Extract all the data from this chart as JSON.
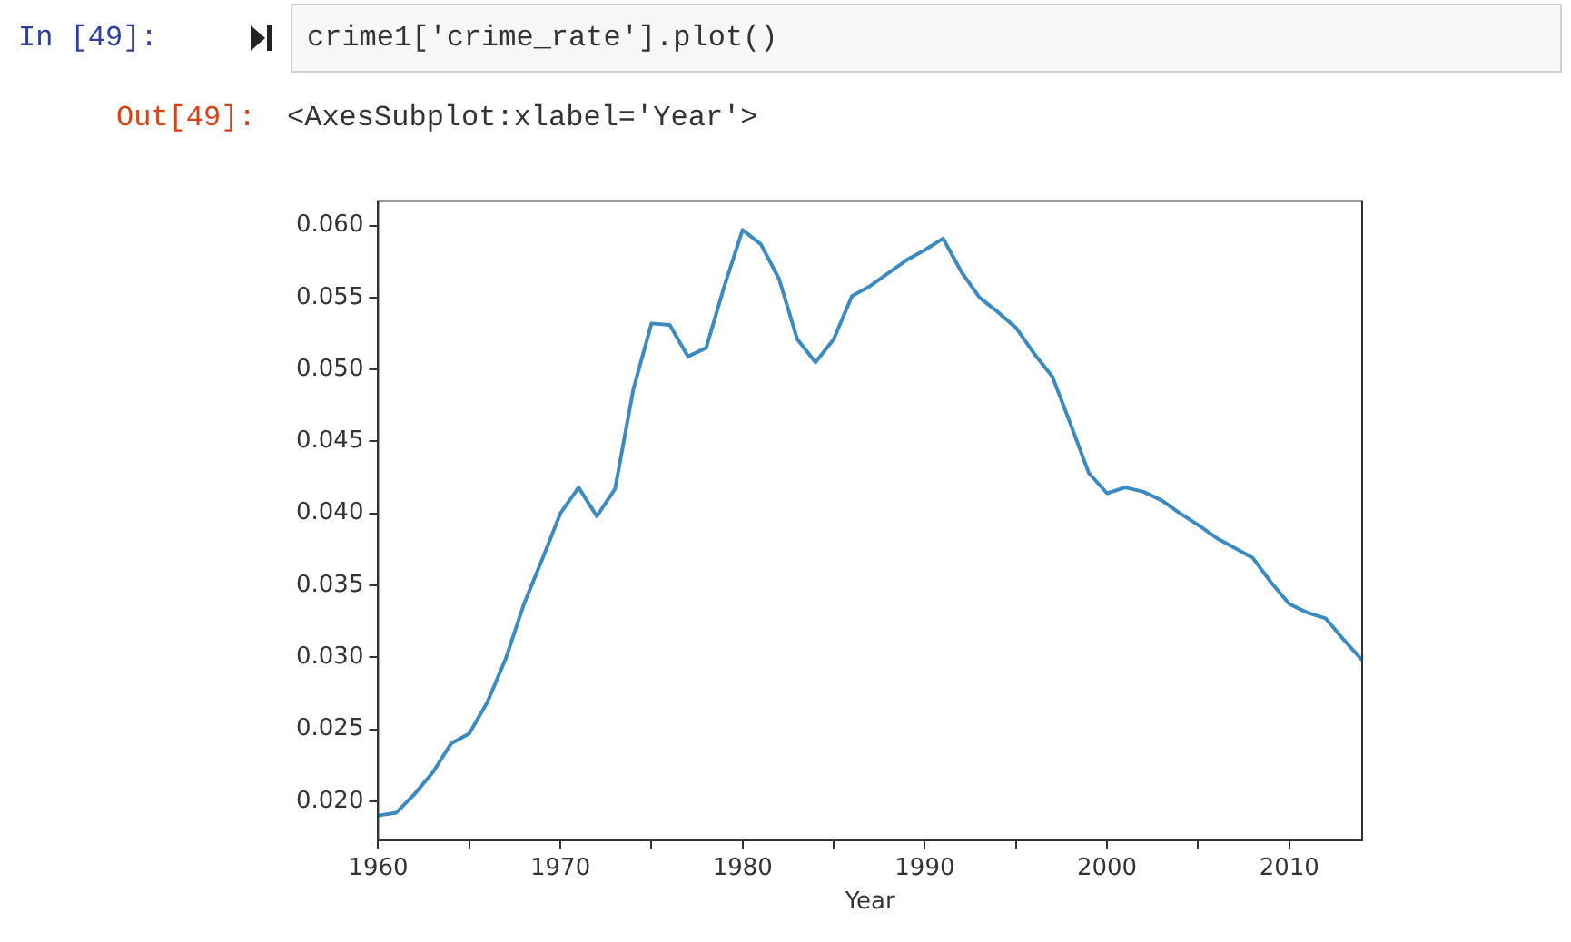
{
  "chart_data": {
    "type": "line",
    "xlabel": "Year",
    "annotations": [
      "In [49]:",
      "crime1['crime_rate'].plot()",
      "Out[49]:",
      "<AxesSubplot:xlabel='Year'>"
    ],
    "x": [
      1960,
      1961,
      1962,
      1963,
      1964,
      1965,
      1966,
      1967,
      1968,
      1969,
      1970,
      1971,
      1972,
      1973,
      1974,
      1975,
      1976,
      1977,
      1978,
      1979,
      1980,
      1981,
      1982,
      1983,
      1984,
      1985,
      1986,
      1987,
      1988,
      1989,
      1990,
      1991,
      1992,
      1993,
      1994,
      1995,
      1996,
      1997,
      1998,
      1999,
      2000,
      2001,
      2002,
      2003,
      2004,
      2005,
      2006,
      2007,
      2008,
      2009,
      2010,
      2011,
      2012,
      2013,
      2014
    ],
    "series": [
      {
        "color": "#3b8bc2",
        "values": [
          0.019,
          0.0192,
          0.0205,
          0.022,
          0.024,
          0.0247,
          0.0269,
          0.0299,
          0.0337,
          0.0368,
          0.04,
          0.0418,
          0.0398,
          0.0417,
          0.0486,
          0.0532,
          0.0531,
          0.0509,
          0.0515,
          0.0558,
          0.0597,
          0.0587,
          0.0563,
          0.0521,
          0.0505,
          0.0521,
          0.0551,
          0.0558,
          0.0567,
          0.0576,
          0.0583,
          0.0591,
          0.0568,
          0.055,
          0.054,
          0.0529,
          0.0511,
          0.0495,
          0.0462,
          0.0428,
          0.0414,
          0.0418,
          0.0415,
          0.0409,
          0.04,
          0.0392,
          0.0383,
          0.0376,
          0.0369,
          0.0352,
          0.0337,
          0.0331,
          0.0327,
          0.0312,
          0.0298
        ]
      }
    ],
    "xlim": [
      1960,
      2014
    ],
    "xticks": [
      1960,
      {
        "value": 1965,
        "label": null
      },
      1970,
      {
        "value": 1975,
        "label": null
      },
      1980,
      {
        "value": 1985,
        "label": null
      },
      1990,
      {
        "value": 1995,
        "label": null
      },
      2000,
      {
        "value": 2005,
        "label": null
      },
      2010
    ],
    "ylim": [
      0.0173,
      0.0617
    ],
    "yticks": [
      {
        "value": 0.02,
        "label": "0.020"
      },
      {
        "value": 0.025,
        "label": "0.025"
      },
      {
        "value": 0.03,
        "label": "0.030"
      },
      {
        "value": 0.035,
        "label": "0.035"
      },
      {
        "value": 0.04,
        "label": "0.040"
      },
      {
        "value": 0.045,
        "label": "0.045"
      },
      {
        "value": 0.05,
        "label": "0.050"
      },
      {
        "value": 0.055,
        "label": "0.055"
      },
      {
        "value": 0.06,
        "label": "0.060"
      }
    ],
    "grid": false,
    "legend": false,
    "marker": "none",
    "line_style": "solid"
  }
}
